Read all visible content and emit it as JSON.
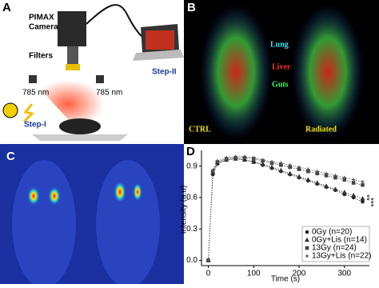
{
  "panels": {
    "a": {
      "letter": "A",
      "camera": [
        "PIMAX",
        "Camera"
      ],
      "filters": "Filters",
      "step2": "Step-II",
      "laser_left": "785 nm",
      "laser_right": "785 nm",
      "step1": "Step-I"
    },
    "b": {
      "letter": "B",
      "lung": "Lung",
      "liver": "Liver",
      "guts": "Guts",
      "ctrl": "CTRL",
      "radiated": "Radiated"
    },
    "c": {
      "letter": "C"
    },
    "d": {
      "letter": "D"
    }
  },
  "chart_data": {
    "type": "line",
    "xlabel": "Time (s)",
    "ylabel": "Intensity (a.u)",
    "x": [
      0,
      10,
      20,
      40,
      60,
      80,
      100,
      120,
      140,
      160,
      180,
      200,
      220,
      240,
      260,
      280,
      300,
      320,
      340
    ],
    "series": [
      {
        "name": "0Gy (n=20)",
        "color": "#222222",
        "marker": "circle",
        "values": [
          0,
          0.82,
          0.92,
          0.96,
          0.97,
          0.96,
          0.94,
          0.91,
          0.88,
          0.85,
          0.82,
          0.79,
          0.76,
          0.73,
          0.7,
          0.67,
          0.63,
          0.6,
          0.56
        ]
      },
      {
        "name": "0Gy+Lis (n=14)",
        "color": "#333333",
        "marker": "triangle",
        "values": [
          0,
          0.84,
          0.93,
          0.96,
          0.97,
          0.96,
          0.94,
          0.92,
          0.89,
          0.86,
          0.83,
          0.8,
          0.77,
          0.74,
          0.71,
          0.68,
          0.65,
          0.62,
          0.59
        ]
      },
      {
        "name": "13Gy (n=24)",
        "color": "#444444",
        "marker": "square",
        "values": [
          0,
          0.85,
          0.94,
          0.97,
          0.98,
          0.98,
          0.97,
          0.95,
          0.93,
          0.91,
          0.89,
          0.87,
          0.85,
          0.83,
          0.81,
          0.79,
          0.77,
          0.74,
          0.72
        ]
      },
      {
        "name": "13Gy+Lis (n=22)",
        "color": "#555555",
        "marker": "plus",
        "values": [
          0,
          0.86,
          0.95,
          0.98,
          0.99,
          0.99,
          0.98,
          0.96,
          0.94,
          0.93,
          0.91,
          0.89,
          0.87,
          0.85,
          0.83,
          0.81,
          0.79,
          0.77,
          0.75
        ]
      }
    ],
    "annotations": [
      "**",
      "***"
    ],
    "xlim": [
      -15,
      355
    ],
    "ylim": [
      -0.05,
      1.05
    ],
    "xticks": [
      0,
      100,
      200,
      300
    ],
    "yticks": [
      {
        "value": 0,
        "label": "0.0"
      },
      0.3,
      0.6,
      0.9
    ],
    "legend": "lower right"
  }
}
